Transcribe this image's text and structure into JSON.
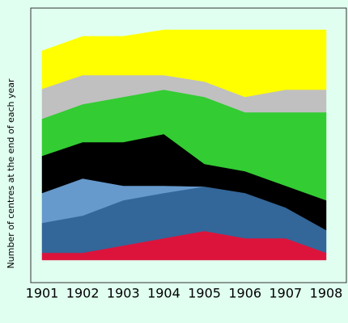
{
  "chart_data": {
    "type": "stacked_area",
    "y_label": "Number of centres at the end of each year",
    "categories": [
      "1901",
      "1902",
      "1903",
      "1904",
      "1905",
      "1906",
      "1907",
      "1908"
    ],
    "ylim": [
      -2.8,
      31.2
    ],
    "series": [
      {
        "color": "#dc143c",
        "values": [
          0.9,
          0.9,
          1.8,
          2.7,
          3.6,
          2.7,
          2.7,
          0.9
        ]
      },
      {
        "color": "#336699",
        "values": [
          3.7,
          4.6,
          5.6,
          5.6,
          5.5,
          5.6,
          3.8,
          2.8
        ]
      },
      {
        "color": "#6699cc",
        "values": [
          3.7,
          4.6,
          1.8,
          0.9,
          0,
          0,
          0,
          0
        ]
      },
      {
        "color": "#000000",
        "values": [
          4.6,
          4.5,
          5.4,
          6.4,
          2.8,
          2.7,
          2.7,
          3.7
        ]
      },
      {
        "color": "#33cc33",
        "values": [
          4.6,
          4.7,
          5.6,
          5.5,
          8.3,
          7.3,
          9.1,
          10.9
        ]
      },
      {
        "color": "#c0c0c0",
        "values": [
          3.7,
          3.6,
          2.7,
          1.8,
          1.9,
          1.9,
          2.8,
          2.8
        ]
      },
      {
        "color": "#ffff00",
        "values": [
          4.7,
          4.8,
          4.8,
          5.6,
          6.4,
          8.3,
          7.4,
          7.4
        ]
      }
    ]
  }
}
